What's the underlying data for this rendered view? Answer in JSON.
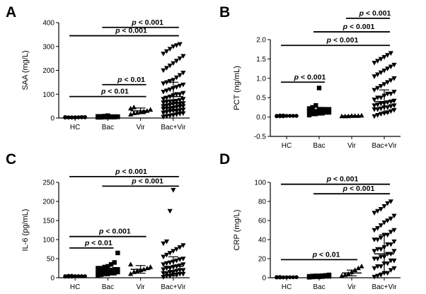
{
  "chart_data": [
    {
      "panel": "A",
      "type": "scatter",
      "ylabel": "SAA (mg/L)",
      "categories": [
        "HC",
        "Bac",
        "Vir",
        "Bac+Vir"
      ],
      "ylim": [
        0,
        400
      ],
      "yticks": [
        0,
        100,
        200,
        300,
        400
      ],
      "markers": [
        "circle",
        "square",
        "triangle-up",
        "triangle-down"
      ],
      "summary": [
        {
          "mean": 3,
          "sd": 2
        },
        {
          "mean": 5,
          "sd": 3
        },
        {
          "mean": 30,
          "sd": 12
        },
        {
          "mean": 90,
          "sd": 60
        }
      ],
      "points": [
        [
          2,
          2,
          3,
          3,
          3,
          4,
          4,
          2,
          3,
          3,
          2,
          4,
          3,
          3,
          3
        ],
        [
          3,
          4,
          4,
          5,
          5,
          6,
          7,
          6,
          5,
          4,
          5,
          8,
          10,
          3,
          6,
          5,
          4,
          7
        ],
        [
          15,
          20,
          25,
          30,
          35,
          40,
          45,
          22,
          28
        ],
        [
          5,
          8,
          10,
          12,
          15,
          18,
          20,
          22,
          25,
          28,
          30,
          32,
          35,
          38,
          40,
          42,
          45,
          48,
          50,
          52,
          55,
          58,
          60,
          62,
          65,
          68,
          70,
          72,
          75,
          80,
          85,
          90,
          95,
          100,
          105,
          110,
          115,
          120,
          125,
          130,
          135,
          140,
          145,
          150,
          155,
          160,
          170,
          180,
          190,
          200,
          210,
          220,
          230,
          240,
          250,
          260,
          270,
          280,
          290,
          300,
          305,
          310,
          40,
          60,
          80,
          100,
          30,
          50,
          70
        ]
      ],
      "brackets": [
        {
          "from": 0,
          "to": 2,
          "y": 90,
          "label": "p < 0.01"
        },
        {
          "from": 1,
          "to": 2,
          "y": 140,
          "label": "p < 0.01"
        },
        {
          "from": 0,
          "to": 3,
          "y": 345,
          "label": "p < 0.001"
        },
        {
          "from": 1,
          "to": 3,
          "y": 380,
          "label": "p < 0.001"
        }
      ]
    },
    {
      "panel": "B",
      "type": "scatter",
      "ylabel": "PCT (ng/mL)",
      "categories": [
        "HC",
        "Bac",
        "Vir",
        "Bac+Vir"
      ],
      "ylim": [
        -0.5,
        2.0
      ],
      "yticks": [
        -0.5,
        0.0,
        0.5,
        1.0,
        1.5,
        2.0
      ],
      "markers": [
        "circle",
        "square",
        "triangle-up",
        "triangle-down"
      ],
      "summary": [
        {
          "mean": 0.03,
          "sd": 0.01
        },
        {
          "mean": 0.15,
          "sd": 0.1
        },
        {
          "mean": 0.03,
          "sd": 0.01
        },
        {
          "mean": 0.4,
          "sd": 0.3
        }
      ],
      "points": [
        [
          0.02,
          0.03,
          0.03,
          0.04,
          0.02,
          0.03,
          0.03,
          0.04,
          0.03,
          0.02
        ],
        [
          0.05,
          0.08,
          0.1,
          0.12,
          0.15,
          0.18,
          0.2,
          0.22,
          0.25,
          0.1,
          0.12,
          0.15,
          0.08,
          0.2,
          0.3,
          0.75,
          0.15,
          0.18
        ],
        [
          0.02,
          0.03,
          0.03,
          0.02,
          0.03,
          0.04,
          0.02
        ],
        [
          0.02,
          0.05,
          0.08,
          0.1,
          0.12,
          0.15,
          0.18,
          0.2,
          0.22,
          0.25,
          0.28,
          0.3,
          0.32,
          0.35,
          0.38,
          0.4,
          0.42,
          0.45,
          0.5,
          0.55,
          0.6,
          0.65,
          0.7,
          0.75,
          0.8,
          0.85,
          0.9,
          0.95,
          1.0,
          1.05,
          1.1,
          1.15,
          1.2,
          1.25,
          1.3,
          1.35,
          1.4,
          1.45,
          1.5,
          1.55,
          1.6,
          1.65,
          0.3,
          0.35,
          0.25,
          0.5,
          0.2,
          0.6
        ]
      ],
      "brackets": [
        {
          "from": 0,
          "to": 1,
          "y": 0.9,
          "label": "p < 0.001"
        },
        {
          "from": 0,
          "to": 3,
          "y": 1.85,
          "label": "p < 0.001"
        },
        {
          "from": 1,
          "to": 3,
          "y": 2.2,
          "label": "p < 0.001"
        },
        {
          "from": 2,
          "to": 3,
          "y": 2.55,
          "label": "p < 0.001"
        }
      ]
    },
    {
      "panel": "C",
      "type": "scatter",
      "ylabel": "IL-6 (pg/mL)",
      "categories": [
        "HC",
        "Bac",
        "Vir",
        "Bac+Vir"
      ],
      "ylim": [
        0,
        250
      ],
      "yticks": [
        0,
        50,
        100,
        150,
        200,
        250
      ],
      "markers": [
        "circle",
        "square",
        "triangle-up",
        "triangle-down"
      ],
      "summary": [
        {
          "mean": 4,
          "sd": 1
        },
        {
          "mean": 20,
          "sd": 12
        },
        {
          "mean": 22,
          "sd": 10
        },
        {
          "mean": 30,
          "sd": 25
        }
      ],
      "points": [
        [
          3,
          4,
          4,
          5,
          3,
          4,
          5,
          4,
          3,
          4
        ],
        [
          5,
          8,
          10,
          12,
          15,
          18,
          20,
          22,
          25,
          28,
          30,
          35,
          40,
          15,
          20,
          25,
          10,
          12,
          65,
          18,
          22
        ],
        [
          10,
          15,
          18,
          20,
          22,
          25,
          28,
          35
        ],
        [
          2,
          5,
          8,
          10,
          12,
          15,
          18,
          20,
          22,
          25,
          28,
          30,
          32,
          35,
          38,
          40,
          42,
          45,
          48,
          50,
          55,
          60,
          65,
          70,
          75,
          80,
          85,
          90,
          95,
          15,
          20,
          10,
          25,
          35,
          175,
          230,
          5,
          8,
          12
        ]
      ],
      "brackets": [
        {
          "from": 0,
          "to": 1,
          "y": 78,
          "label": "p < 0.01"
        },
        {
          "from": 0,
          "to": 2,
          "y": 108,
          "label": "p < 0.001"
        },
        {
          "from": 1,
          "to": 3,
          "y": 240,
          "label": "p < 0.001"
        },
        {
          "from": 0,
          "to": 3,
          "y": 265,
          "label": "p < 0.001"
        }
      ]
    },
    {
      "panel": "D",
      "type": "scatter",
      "ylabel": "CRP (mg/L)",
      "categories": [
        "HC",
        "Bac",
        "Vir",
        "Bac+Vir"
      ],
      "ylim": [
        0,
        100
      ],
      "yticks": [
        0,
        20,
        40,
        60,
        80,
        100
      ],
      "markers": [
        "circle",
        "square",
        "triangle-up",
        "triangle-down"
      ],
      "summary": [
        {
          "mean": 0.5,
          "sd": 0.3
        },
        {
          "mean": 1.5,
          "sd": 0.8
        },
        {
          "mean": 5,
          "sd": 3
        },
        {
          "mean": 25,
          "sd": 20
        }
      ],
      "points": [
        [
          0.3,
          0.5,
          0.5,
          0.8,
          0.4,
          0.6,
          0.5,
          0.3,
          0.7
        ],
        [
          0.5,
          1,
          1.5,
          2,
          2.5,
          1,
          1.5,
          2,
          3,
          1.2,
          1.8,
          2.2,
          0.8,
          1.5
        ],
        [
          2,
          4,
          6,
          8,
          10,
          12,
          3
        ],
        [
          1,
          2,
          3,
          5,
          8,
          10,
          12,
          15,
          18,
          20,
          22,
          25,
          28,
          30,
          32,
          35,
          38,
          40,
          42,
          45,
          48,
          50,
          52,
          55,
          58,
          60,
          62,
          65,
          68,
          70,
          72,
          75,
          78,
          80,
          15,
          20,
          25,
          10,
          30,
          35,
          40,
          5,
          12,
          18,
          22,
          28,
          45,
          50
        ]
      ],
      "brackets": [
        {
          "from": 0,
          "to": 2,
          "y": 19,
          "label": "p < 0.01"
        },
        {
          "from": 1,
          "to": 3,
          "y": 88,
          "label": "p < 0.001"
        },
        {
          "from": 0,
          "to": 3,
          "y": 98,
          "label": "p < 0.001"
        }
      ]
    }
  ]
}
